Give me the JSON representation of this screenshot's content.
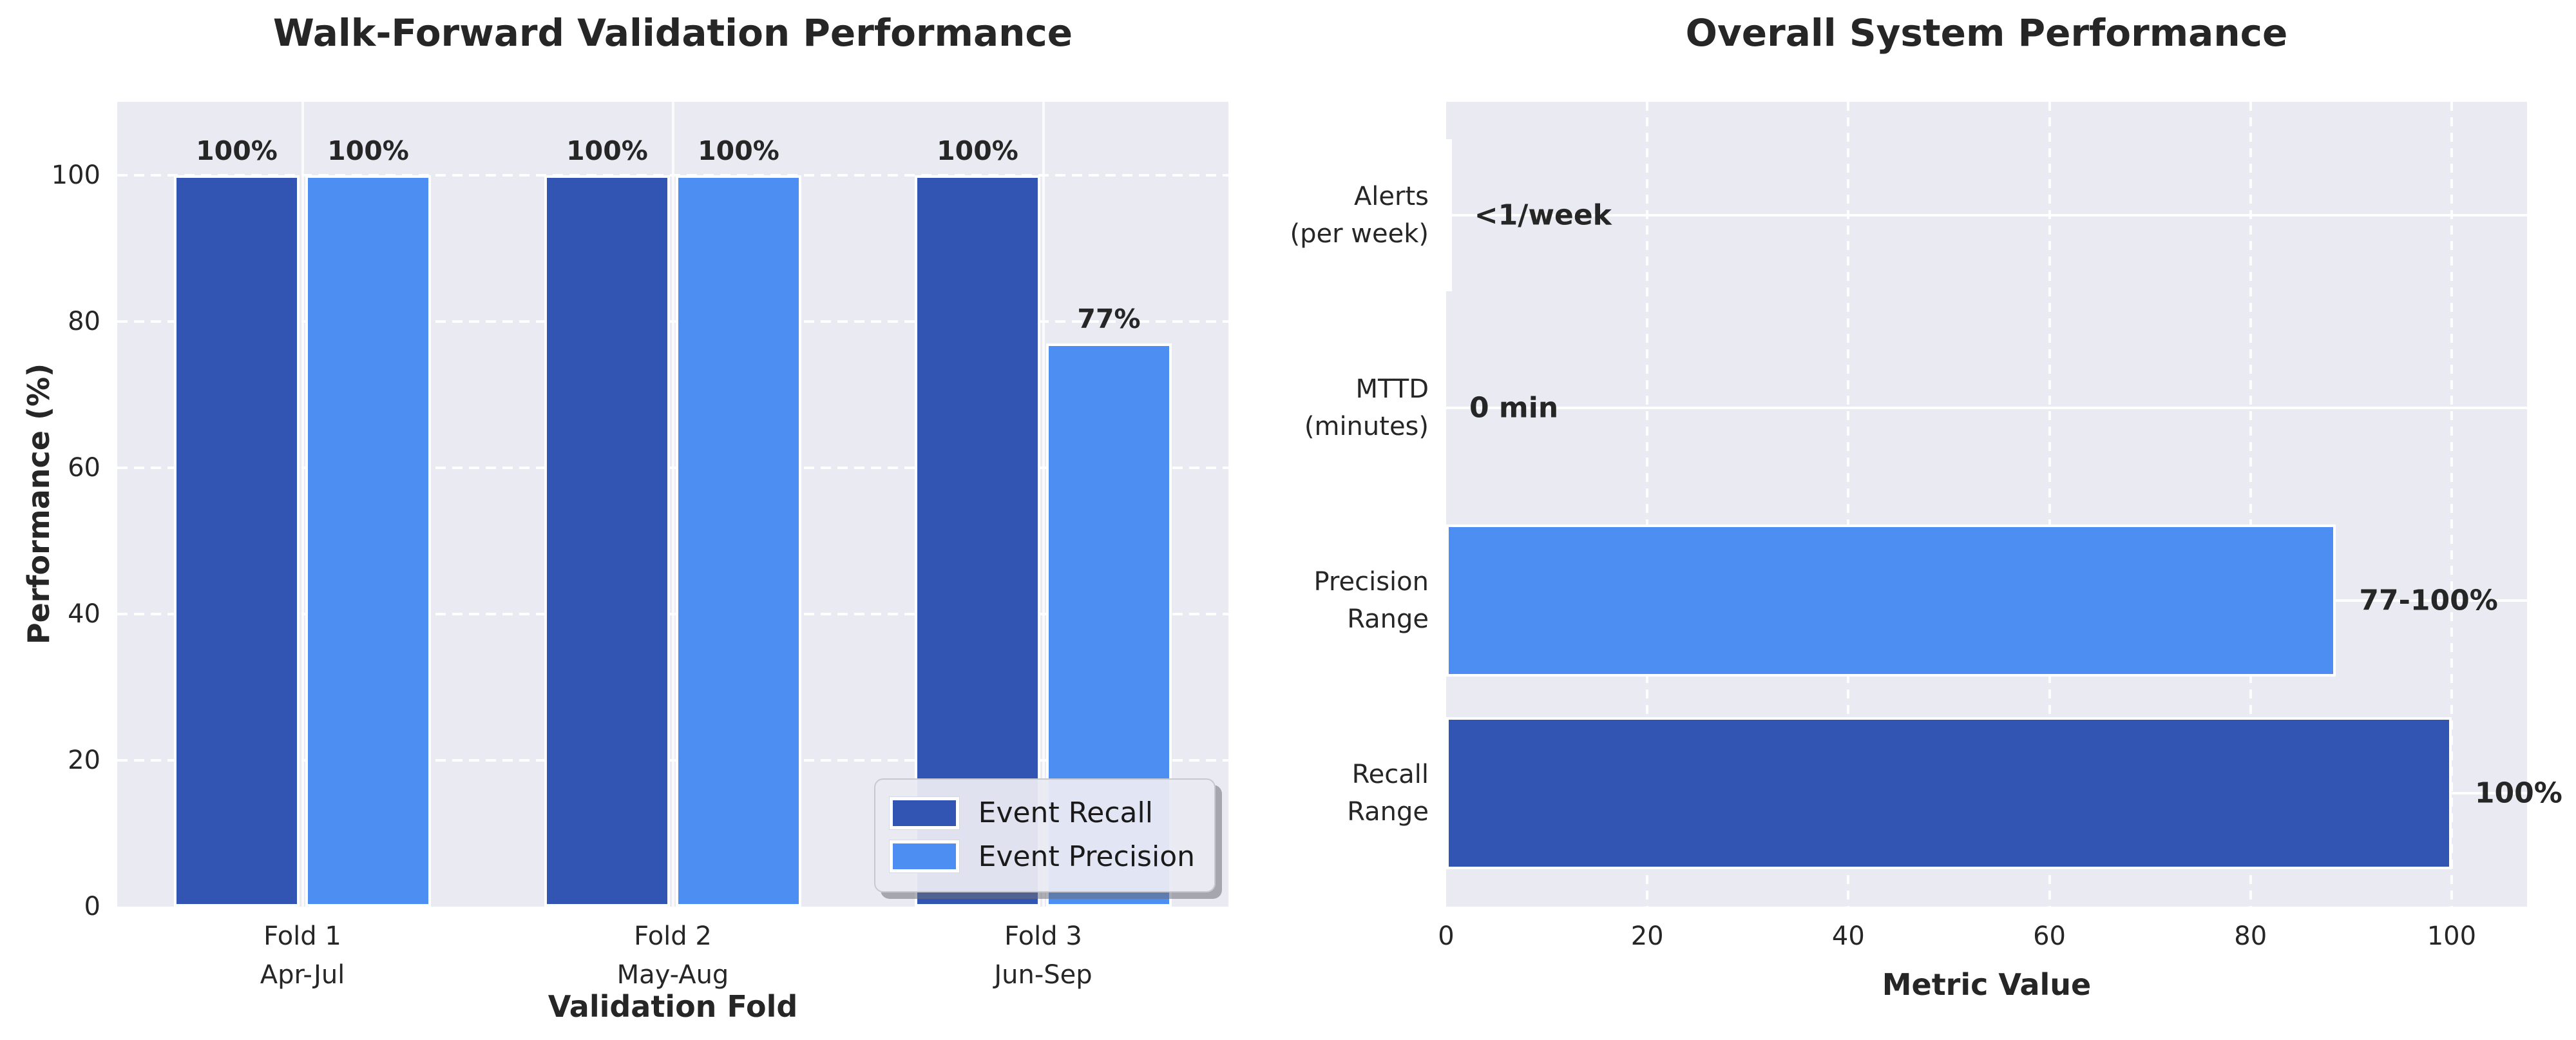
{
  "colors": {
    "figure_bg": "#ffffff",
    "plot_bg": "#eaeaf2",
    "grid": "#ffffff",
    "text": "#262626",
    "recall": "#3254b2",
    "precision": "#4d8ef2",
    "bar_edge": "#ffffff"
  },
  "chart_data": [
    {
      "id": "walk_forward",
      "type": "bar",
      "title": "Walk-Forward Validation Performance",
      "xlabel": "Validation Fold",
      "ylabel": "Performance (%)",
      "ylim": [
        0,
        110
      ],
      "yticks": [
        0,
        20,
        40,
        60,
        80,
        100
      ],
      "grid": {
        "value_axis": "dashed-white-horizontal",
        "category_axis": "solid-white-vertical"
      },
      "categories": [
        {
          "line1": "Fold 1",
          "line2": "Apr-Jul"
        },
        {
          "line1": "Fold 2",
          "line2": "May-Aug"
        },
        {
          "line1": "Fold 3",
          "line2": "Jun-Sep"
        }
      ],
      "series": [
        {
          "name": "Event Recall",
          "color": "recall",
          "values": [
            100,
            100,
            100
          ],
          "value_labels": [
            "100%",
            "100%",
            "100%"
          ]
        },
        {
          "name": "Event Precision",
          "color": "precision",
          "values": [
            100,
            100,
            77
          ],
          "value_labels": [
            "100%",
            "100%",
            "77%"
          ]
        }
      ],
      "legend": {
        "position": "lower right",
        "items": [
          "Event Recall",
          "Event Precision"
        ]
      }
    },
    {
      "id": "overall",
      "type": "barh",
      "title": "Overall System Performance",
      "xlabel": "Metric Value",
      "xlim": [
        0,
        107.5
      ],
      "xticks": [
        0,
        20,
        40,
        60,
        80,
        100
      ],
      "grid": {
        "value_axis": "dashed-white-vertical",
        "category_axis": "solid-white-horizontal"
      },
      "rows": [
        {
          "label": "Alerts\n(per week)",
          "value": 0.5,
          "annotation": "<1/week",
          "color": "edge"
        },
        {
          "label": "MTTD\n(minutes)",
          "value": 0,
          "annotation": "0 min",
          "color": "none"
        },
        {
          "label": "Precision\nRange",
          "value": 88.5,
          "annotation": "77-100%",
          "color": "precision"
        },
        {
          "label": "Recall\nRange",
          "value": 100,
          "annotation": "100%",
          "color": "recall"
        }
      ]
    }
  ]
}
